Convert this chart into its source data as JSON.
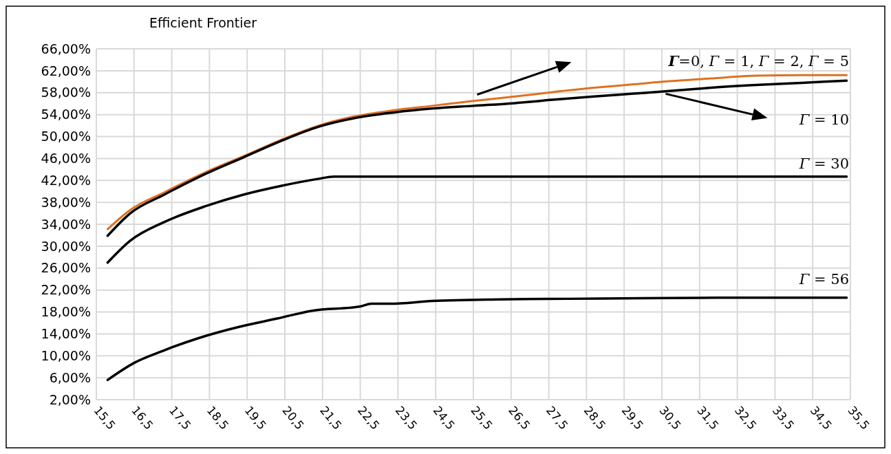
{
  "chart_data": {
    "type": "line",
    "title": "Efficient Frontier",
    "grid": true,
    "marker": "none",
    "line_style": "solid",
    "xlim": [
      15.5,
      35.5
    ],
    "xticks": [
      {
        "value": 15.5,
        "label": "15,5"
      },
      {
        "value": 16.5,
        "label": "16,5"
      },
      {
        "value": 17.5,
        "label": "17,5"
      },
      {
        "value": 18.5,
        "label": "18,5"
      },
      {
        "value": 19.5,
        "label": "19,5"
      },
      {
        "value": 20.5,
        "label": "20,5"
      },
      {
        "value": 21.5,
        "label": "21,5"
      },
      {
        "value": 22.5,
        "label": "22,5"
      },
      {
        "value": 23.5,
        "label": "23,5"
      },
      {
        "value": 24.5,
        "label": "24,5"
      },
      {
        "value": 25.5,
        "label": "25,5"
      },
      {
        "value": 26.5,
        "label": "26,5"
      },
      {
        "value": 27.5,
        "label": "27,5"
      },
      {
        "value": 28.5,
        "label": "28,5"
      },
      {
        "value": 29.5,
        "label": "29,5"
      },
      {
        "value": 30.5,
        "label": "30,5"
      },
      {
        "value": 31.5,
        "label": "31,5"
      },
      {
        "value": 32.5,
        "label": "32,5"
      },
      {
        "value": 33.5,
        "label": "33,5"
      },
      {
        "value": 34.5,
        "label": "34,5"
      },
      {
        "value": 35.5,
        "label": "35,5"
      }
    ],
    "ylim": [
      2,
      66
    ],
    "yticks": [
      {
        "value": 2,
        "label": "2,00%"
      },
      {
        "value": 6,
        "label": "6,00%"
      },
      {
        "value": 10,
        "label": "10,00%"
      },
      {
        "value": 14,
        "label": "14,00%"
      },
      {
        "value": 18,
        "label": "18,00%"
      },
      {
        "value": 22,
        "label": "22,00%"
      },
      {
        "value": 26,
        "label": "26,00%"
      },
      {
        "value": 30,
        "label": "30,00%"
      },
      {
        "value": 34,
        "label": "34,00%"
      },
      {
        "value": 38,
        "label": "38,00%"
      },
      {
        "value": 42,
        "label": "42,00%"
      },
      {
        "value": 46,
        "label": "46,00%"
      },
      {
        "value": 50,
        "label": "50,00%"
      },
      {
        "value": 54,
        "label": "54,00%"
      },
      {
        "value": 58,
        "label": "58,00%"
      },
      {
        "value": 62,
        "label": "62,00%"
      },
      {
        "value": 66,
        "label": "66,00%"
      }
    ],
    "series": [
      {
        "name": "Γ=0, Γ = 1, Γ = 2, Γ = 5",
        "color": "#e07020",
        "x": [
          15.8,
          16.4,
          17.3,
          18.4,
          19.4,
          20.4,
          21.4,
          22.3,
          23.4,
          24.4,
          25.5,
          26.6,
          27.6,
          28.7,
          29.7,
          30.7,
          31.8,
          33.0,
          34.2,
          35.4
        ],
        "values": [
          33.1,
          36.6,
          39.8,
          43.5,
          46.4,
          49.4,
          52.0,
          53.6,
          54.8,
          55.6,
          56.5,
          57.3,
          58.1,
          58.9,
          59.5,
          60.1,
          60.6,
          61.1,
          61.2,
          61.2
        ]
      },
      {
        "name": "Γ = 10",
        "color": "#000000",
        "x": [
          15.8,
          16.4,
          17.3,
          18.4,
          19.4,
          20.4,
          21.4,
          22.3,
          23.4,
          24.4,
          25.5,
          26.6,
          27.6,
          28.7,
          29.7,
          30.7,
          31.8,
          33.0,
          34.2,
          35.4
        ],
        "values": [
          31.9,
          36.0,
          39.4,
          43.2,
          46.2,
          49.2,
          51.8,
          53.3,
          54.4,
          55.1,
          55.6,
          56.1,
          56.7,
          57.3,
          57.8,
          58.3,
          58.9,
          59.4,
          59.8,
          60.2
        ]
      },
      {
        "name": "Γ = 30",
        "color": "#000000",
        "x": [
          15.8,
          16.4,
          17.3,
          18.4,
          19.4,
          20.4,
          21.4,
          21.8,
          25.0,
          30.0,
          35.4
        ],
        "values": [
          27.0,
          31.0,
          34.4,
          37.3,
          39.4,
          41.0,
          42.3,
          42.7,
          42.7,
          42.7,
          42.7
        ]
      },
      {
        "name": "Γ = 56",
        "color": "#000000",
        "x": [
          15.8,
          16.5,
          17.3,
          18.2,
          19.3,
          20.3,
          21.2,
          22.5,
          22.8,
          23.3,
          24.4,
          26.2,
          28.0,
          30.0,
          32.0,
          34.0,
          35.4
        ],
        "values": [
          5.6,
          8.7,
          11.0,
          13.2,
          15.3,
          16.8,
          18.2,
          19.0,
          19.5,
          19.5,
          20.0,
          20.3,
          20.4,
          20.5,
          20.6,
          20.6,
          20.6
        ]
      }
    ]
  }
}
